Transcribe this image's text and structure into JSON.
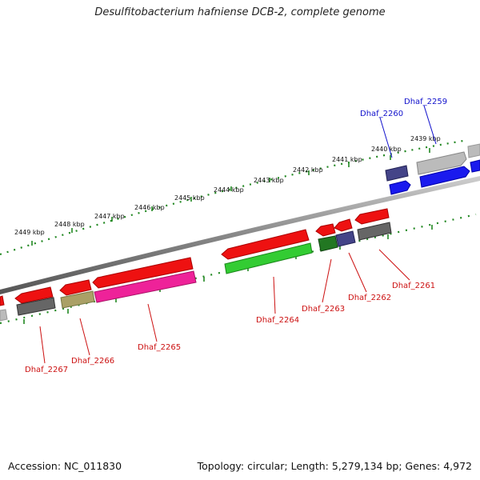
{
  "title": "Desulfitobacterium hafniense DCB-2, complete genome",
  "footer": {
    "accession": "Accession: NC_011830",
    "topology": "Topology: circular; Length: 5,279,134 bp; Genes: 4,972"
  },
  "colors": {
    "red": "#ee1111",
    "blue": "#1a1aee",
    "navy": "#444488",
    "green": "#33cc33",
    "darkgreen": "#227722",
    "magenta": "#ee2299",
    "olive": "#aaa066",
    "gray": "#666666",
    "lightgray": "#bbbbbb",
    "ticks": "#228822"
  },
  "kbp_ticks": [
    {
      "label": "2439 kbp"
    },
    {
      "label": "2440 kbp"
    },
    {
      "label": "2441 kbp"
    },
    {
      "label": "2442 kbp"
    },
    {
      "label": "2443 kbp"
    },
    {
      "label": "2444 kbp"
    },
    {
      "label": "2445 kbp"
    },
    {
      "label": "2446 kbp"
    },
    {
      "label": "2447 kbp"
    },
    {
      "label": "2448 kbp"
    },
    {
      "label": "2449 kbp"
    }
  ],
  "gene_labels": [
    {
      "name": "Dhaf_2259",
      "color": "#1111cc"
    },
    {
      "name": "Dhaf_2260",
      "color": "#1111cc"
    },
    {
      "name": "Dhaf_2261",
      "color": "#cc1111"
    },
    {
      "name": "Dhaf_2262",
      "color": "#cc1111"
    },
    {
      "name": "Dhaf_2263",
      "color": "#cc1111"
    },
    {
      "name": "Dhaf_2264",
      "color": "#cc1111"
    },
    {
      "name": "Dhaf_2265",
      "color": "#cc1111"
    },
    {
      "name": "Dhaf_2266",
      "color": "#cc1111"
    },
    {
      "name": "Dhaf_2267",
      "color": "#cc1111"
    }
  ]
}
